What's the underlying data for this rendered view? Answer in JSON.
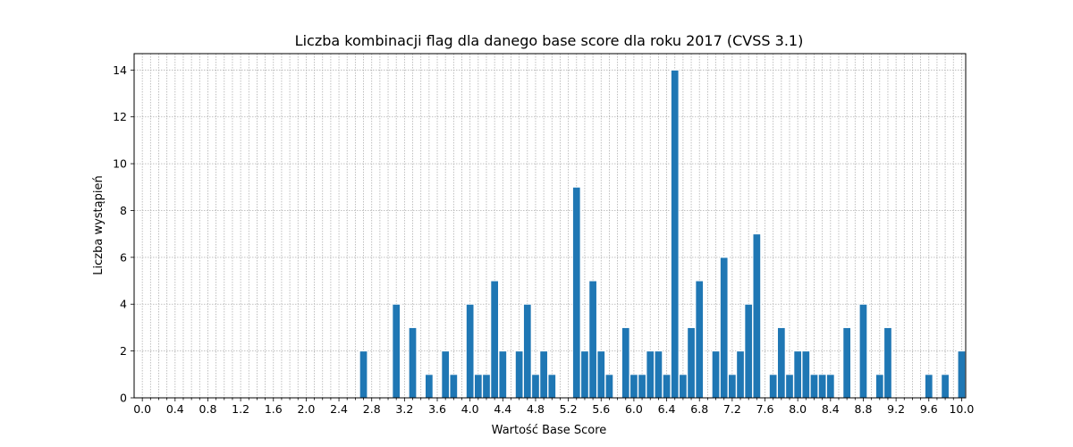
{
  "chart_data": {
    "type": "bar",
    "title": "Liczba kombinacji flag dla danego base score dla roku 2017 (CVSS 3.1)",
    "xlabel": "Wartość Base Score",
    "ylabel": "Liczba wystąpień",
    "xlim": [
      0.0,
      10.0
    ],
    "ylim": [
      0,
      14.7
    ],
    "bar_color": "#1f77b4",
    "grid": true,
    "x_ticks": [
      "0.0",
      "0.4",
      "0.8",
      "1.2",
      "1.6",
      "2.0",
      "2.4",
      "2.8",
      "3.2",
      "3.6",
      "4.0",
      "4.4",
      "4.8",
      "5.2",
      "5.6",
      "6.0",
      "6.4",
      "6.8",
      "7.2",
      "7.6",
      "8.0",
      "8.4",
      "8.8",
      "9.2",
      "9.6",
      "10.0"
    ],
    "y_ticks": [
      "0",
      "2",
      "4",
      "6",
      "8",
      "10",
      "12",
      "14"
    ],
    "x": [
      2.7,
      3.1,
      3.3,
      3.5,
      3.7,
      3.8,
      4.0,
      4.1,
      4.2,
      4.3,
      4.4,
      4.6,
      4.7,
      4.8,
      4.9,
      5.0,
      5.3,
      5.4,
      5.5,
      5.6,
      5.7,
      5.9,
      6.0,
      6.1,
      6.2,
      6.3,
      6.4,
      6.5,
      6.6,
      6.7,
      6.8,
      7.0,
      7.1,
      7.2,
      7.3,
      7.4,
      7.5,
      7.7,
      7.8,
      7.9,
      8.0,
      8.1,
      8.2,
      8.3,
      8.4,
      8.6,
      8.8,
      9.0,
      9.1,
      9.6,
      9.8,
      10.0
    ],
    "values": [
      2,
      4,
      3,
      1,
      2,
      1,
      4,
      1,
      1,
      5,
      2,
      2,
      4,
      1,
      2,
      1,
      9,
      2,
      5,
      2,
      1,
      3,
      1,
      1,
      2,
      2,
      1,
      14,
      1,
      3,
      5,
      2,
      6,
      1,
      2,
      4,
      7,
      1,
      3,
      1,
      2,
      2,
      1,
      1,
      1,
      3,
      4,
      1,
      3,
      1,
      1,
      2
    ]
  }
}
